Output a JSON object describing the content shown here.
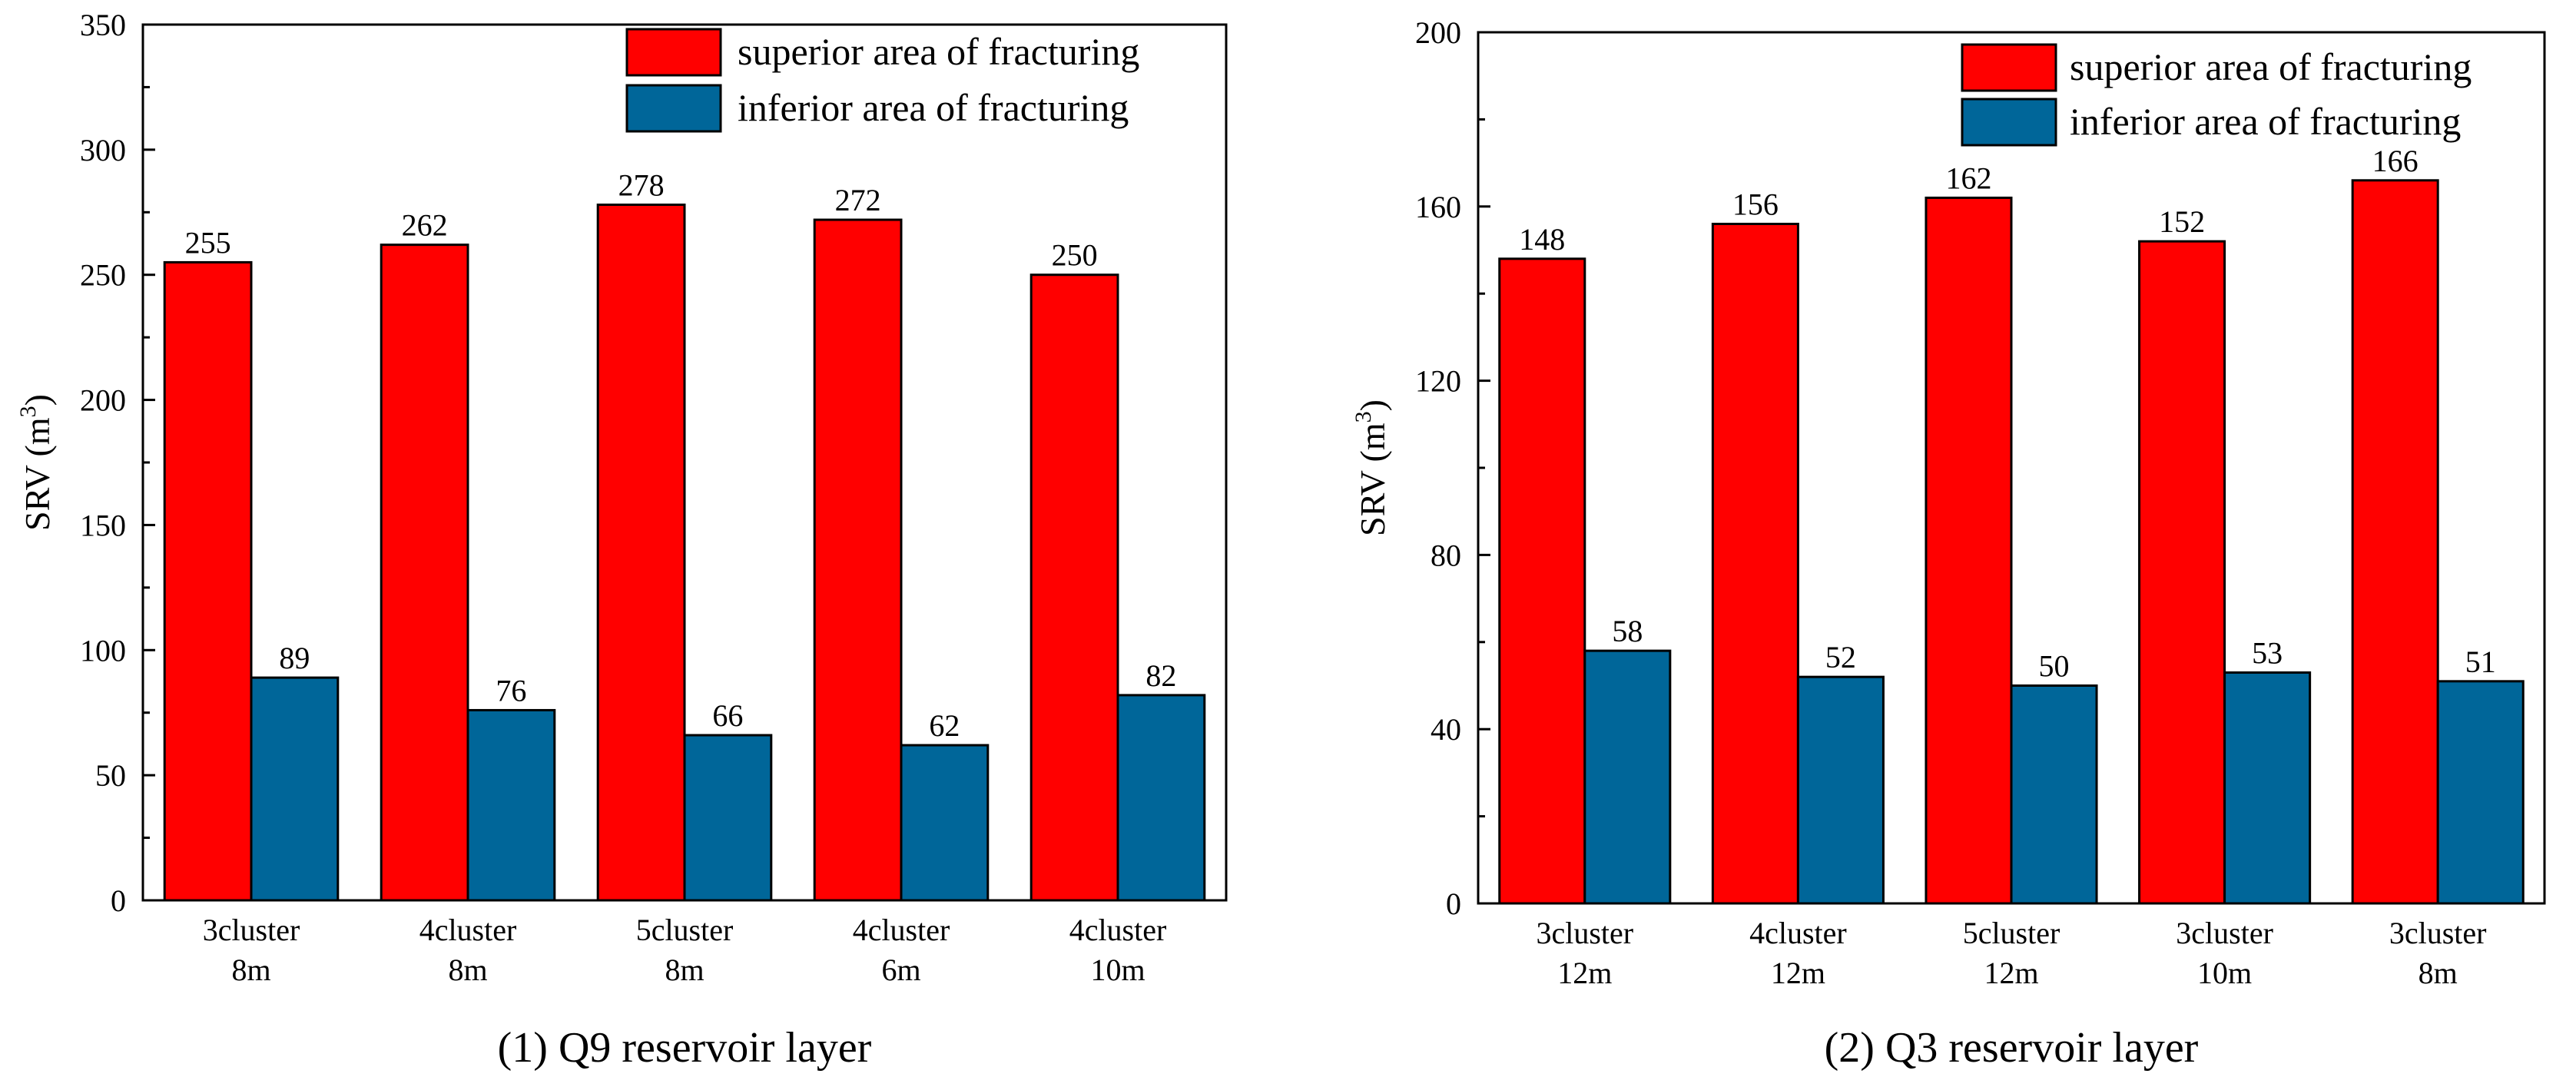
{
  "figure": {
    "colors": {
      "superior": "#ff0000",
      "inferior": "#006699",
      "axis": "#000000"
    }
  },
  "chart_data": [
    {
      "type": "bar",
      "title": "(1) Q9 reservoir layer",
      "ylabel": "SRV (m",
      "ylabel_sup": "3",
      "ylabel_close": ")",
      "ylim": [
        0,
        350
      ],
      "yticks": [
        0,
        50,
        100,
        150,
        200,
        250,
        300,
        350
      ],
      "categories": [
        [
          "3cluster",
          "8m"
        ],
        [
          "4cluster",
          "8m"
        ],
        [
          "5cluster",
          "8m"
        ],
        [
          "4cluster",
          "6m"
        ],
        [
          "4cluster",
          "10m"
        ]
      ],
      "series": [
        {
          "name": "superior area of fracturing",
          "values": [
            255,
            262,
            278,
            272,
            250
          ],
          "color": "#ff0000"
        },
        {
          "name": "inferior area of fracturing",
          "values": [
            89,
            76,
            66,
            62,
            82
          ],
          "color": "#006699"
        }
      ],
      "legend": "top-right"
    },
    {
      "type": "bar",
      "title": "(2) Q3 reservoir layer",
      "ylabel": "SRV (m",
      "ylabel_sup": "3",
      "ylabel_close": ")",
      "ylim": [
        0,
        200
      ],
      "yticks": [
        0,
        40,
        80,
        120,
        160,
        200
      ],
      "categories": [
        [
          "3cluster",
          "12m"
        ],
        [
          "4cluster",
          "12m"
        ],
        [
          "5cluster",
          "12m"
        ],
        [
          "3cluster",
          "10m"
        ],
        [
          "3cluster",
          "8m"
        ]
      ],
      "series": [
        {
          "name": "superior area of fracturing",
          "values": [
            148,
            156,
            162,
            152,
            166
          ],
          "color": "#ff0000"
        },
        {
          "name": "inferior area of fracturing",
          "values": [
            58,
            52,
            50,
            53,
            51
          ],
          "color": "#006699"
        }
      ],
      "legend": "top-right"
    }
  ]
}
